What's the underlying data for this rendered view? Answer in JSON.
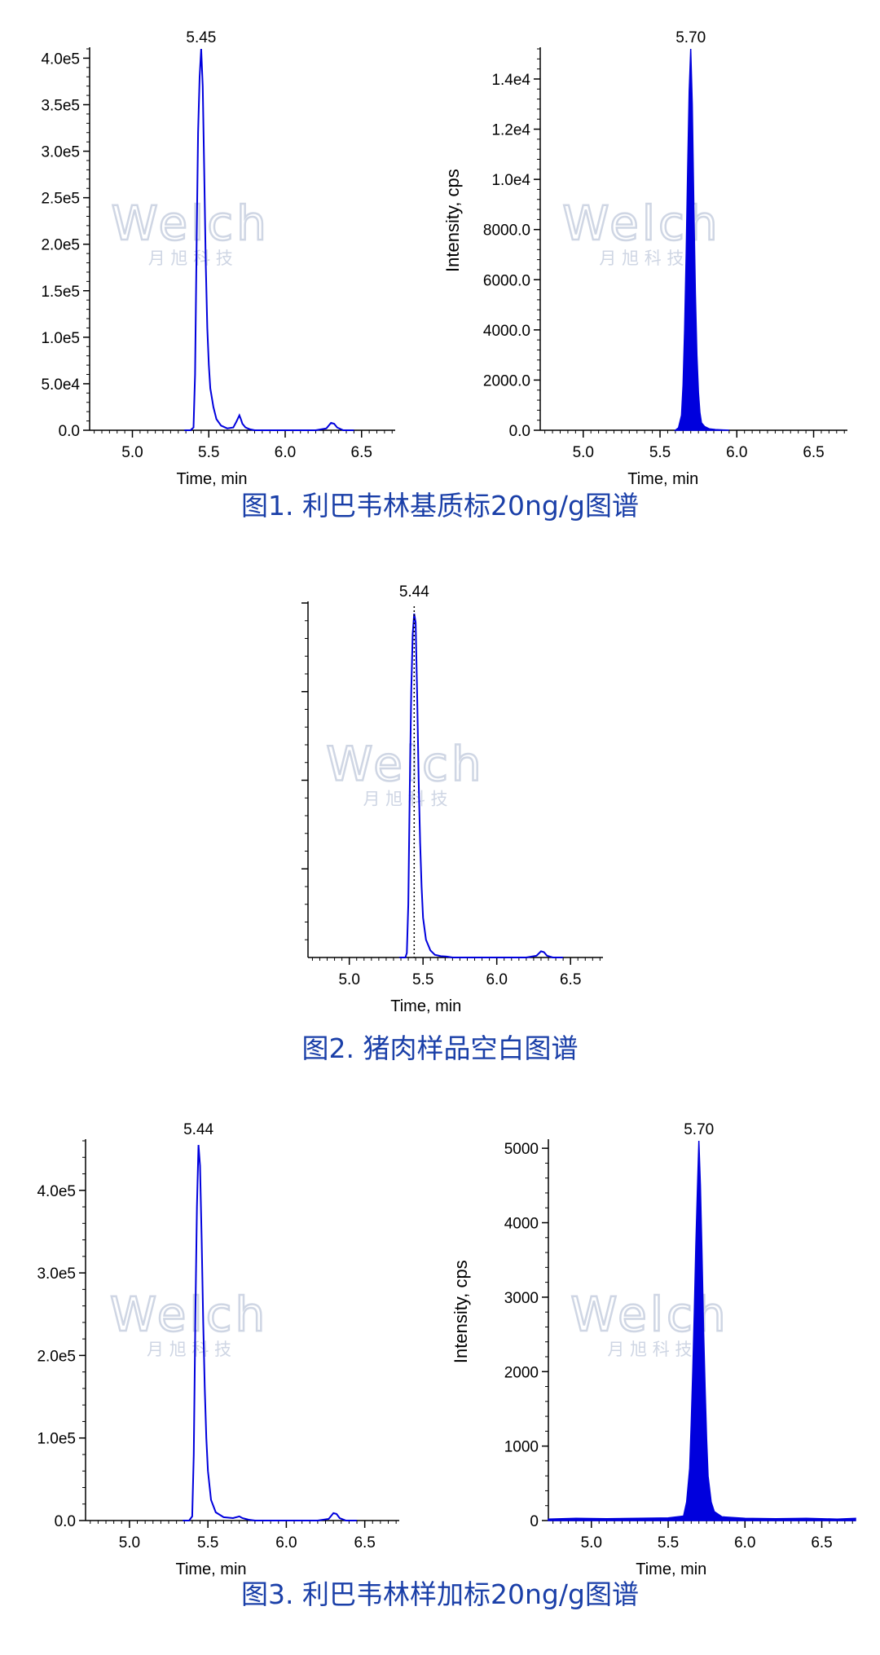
{
  "watermark": {
    "logo": "Welch",
    "subtitle": "月 旭 科 技"
  },
  "figures": [
    {
      "caption": "图1. 利巴韦林基质标20ng/g图谱",
      "chart_ids": [
        0,
        1
      ]
    },
    {
      "caption": "图2. 猪肉样品空白图谱",
      "chart_ids": [
        2
      ]
    },
    {
      "caption": "图3. 利巴韦林样加标20ng/g图谱",
      "chart_ids": [
        3,
        4
      ]
    }
  ],
  "chart_data": [
    {
      "type": "line",
      "xlabel": "Time, min",
      "ylabel": "",
      "xlim": [
        4.72,
        6.72
      ],
      "ylim": [
        0,
        410000
      ],
      "xticks": [
        "5.0",
        "5.5",
        "6.0",
        "6.5"
      ],
      "yticks": [
        "0.0",
        "5.0e4",
        "1.0e5",
        "1.5e5",
        "2.0e5",
        "2.5e5",
        "3.0e5",
        "3.5e5",
        "4.0e5"
      ],
      "yticks_values": [
        0,
        50000,
        100000,
        150000,
        200000,
        250000,
        300000,
        350000,
        400000
      ],
      "peak_label": "5.45",
      "peak_label_x": 5.45,
      "series": [
        {
          "style": "outline",
          "x": [
            5.34,
            5.38,
            5.4,
            5.41,
            5.42,
            5.43,
            5.44,
            5.45,
            5.46,
            5.47,
            5.48,
            5.49,
            5.5,
            5.51,
            5.53,
            5.55,
            5.58,
            5.62,
            5.66,
            5.68,
            5.7,
            5.71,
            5.72,
            5.74,
            5.77,
            5.8,
            6.2,
            6.27,
            6.3,
            6.32,
            6.34,
            6.38,
            6.45
          ],
          "y": [
            0,
            0,
            3000,
            60000,
            200000,
            320000,
            380000,
            410000,
            370000,
            280000,
            180000,
            110000,
            70000,
            45000,
            25000,
            12000,
            5000,
            2000,
            3000,
            9000,
            16000,
            12000,
            7000,
            3000,
            1000,
            0,
            0,
            2000,
            8000,
            7000,
            3000,
            0,
            0
          ]
        }
      ]
    },
    {
      "type": "line",
      "xlabel": "Time, min",
      "ylabel": "Intensity, cps",
      "xlim": [
        4.72,
        6.72
      ],
      "ylim": [
        0,
        15200
      ],
      "xticks": [
        "5.0",
        "5.5",
        "6.0",
        "6.5"
      ],
      "yticks": [
        "0.0",
        "2000.0",
        "4000.0",
        "6000.0",
        "8000.0",
        "1.0e4",
        "1.2e4",
        "1.4e4"
      ],
      "yticks_values": [
        0,
        2000,
        4000,
        6000,
        8000,
        10000,
        12000,
        14000
      ],
      "peak_label": "5.70",
      "peak_label_x": 5.7,
      "series": [
        {
          "style": "filled",
          "x": [
            5.6,
            5.62,
            5.64,
            5.65,
            5.66,
            5.67,
            5.68,
            5.69,
            5.7,
            5.71,
            5.72,
            5.73,
            5.74,
            5.75,
            5.76,
            5.77,
            5.79,
            5.82,
            5.86,
            5.95
          ],
          "y": [
            0,
            100,
            600,
            1800,
            4000,
            7000,
            10500,
            13500,
            15200,
            13000,
            9000,
            5500,
            3000,
            1500,
            700,
            300,
            150,
            60,
            30,
            0
          ]
        }
      ]
    },
    {
      "type": "line",
      "xlabel": "Time, min",
      "ylabel": "",
      "xlim": [
        4.72,
        6.72
      ],
      "ylim": [
        0,
        400000
      ],
      "xticks": [
        "5.0",
        "5.5",
        "6.0",
        "6.5"
      ],
      "yticks": [],
      "peak_label": "5.44",
      "peak_label_x": 5.44,
      "marker_line_x": 5.44,
      "series": [
        {
          "style": "outline",
          "x": [
            5.34,
            5.38,
            5.39,
            5.4,
            5.41,
            5.42,
            5.43,
            5.44,
            5.45,
            5.46,
            5.47,
            5.48,
            5.49,
            5.5,
            5.52,
            5.55,
            5.58,
            5.62,
            5.66,
            5.7,
            6.2,
            6.27,
            6.3,
            6.32,
            6.34,
            6.38,
            6.45
          ],
          "y": [
            0,
            0,
            5000,
            60000,
            190000,
            300000,
            365000,
            388000,
            378000,
            300000,
            200000,
            130000,
            80000,
            45000,
            20000,
            8000,
            3000,
            1500,
            1000,
            0,
            0,
            2000,
            7000,
            6000,
            2000,
            0,
            0
          ]
        }
      ]
    },
    {
      "type": "line",
      "xlabel": "Time, min",
      "ylabel": "",
      "xlim": [
        4.72,
        6.72
      ],
      "ylim": [
        0,
        460000
      ],
      "xticks": [
        "5.0",
        "5.5",
        "6.0",
        "6.5"
      ],
      "yticks": [
        "0.0",
        "1.0e5",
        "2.0e5",
        "3.0e5",
        "4.0e5"
      ],
      "yticks_values": [
        0,
        100000,
        200000,
        300000,
        400000
      ],
      "peak_label": "5.44",
      "peak_label_x": 5.44,
      "series": [
        {
          "style": "outline",
          "x": [
            5.34,
            5.38,
            5.4,
            5.41,
            5.42,
            5.43,
            5.44,
            5.45,
            5.46,
            5.47,
            5.48,
            5.49,
            5.5,
            5.52,
            5.55,
            5.6,
            5.66,
            5.7,
            5.72,
            5.76,
            5.8,
            6.2,
            6.27,
            6.3,
            6.32,
            6.34,
            6.38,
            6.45
          ],
          "y": [
            0,
            0,
            5000,
            80000,
            250000,
            380000,
            455000,
            430000,
            340000,
            240000,
            160000,
            100000,
            60000,
            25000,
            10000,
            4000,
            3000,
            5000,
            3000,
            1000,
            0,
            0,
            2000,
            9000,
            8000,
            3000,
            0,
            0
          ]
        }
      ]
    },
    {
      "type": "line",
      "xlabel": "Time, min",
      "ylabel": "Intensity, cps",
      "xlim": [
        4.72,
        6.72
      ],
      "ylim": [
        0,
        5100
      ],
      "xticks": [
        "5.0",
        "5.5",
        "6.0",
        "6.5"
      ],
      "yticks": [
        "0",
        "1000",
        "2000",
        "3000",
        "4000",
        "5000"
      ],
      "yticks_values": [
        0,
        1000,
        2000,
        3000,
        4000,
        5000
      ],
      "peak_label": "5.70",
      "peak_label_x": 5.7,
      "series": [
        {
          "style": "filled",
          "x": [
            4.72,
            4.9,
            5.1,
            5.3,
            5.5,
            5.6,
            5.62,
            5.64,
            5.65,
            5.66,
            5.67,
            5.68,
            5.69,
            5.7,
            5.71,
            5.72,
            5.73,
            5.74,
            5.75,
            5.76,
            5.78,
            5.8,
            5.85,
            6.0,
            6.2,
            6.4,
            6.6,
            6.72
          ],
          "y": [
            20,
            30,
            25,
            30,
            35,
            60,
            250,
            700,
            1300,
            2000,
            2800,
            3700,
            4400,
            5100,
            4500,
            3600,
            2600,
            1800,
            1100,
            600,
            250,
            120,
            50,
            30,
            25,
            30,
            20,
            30
          ]
        }
      ]
    }
  ]
}
